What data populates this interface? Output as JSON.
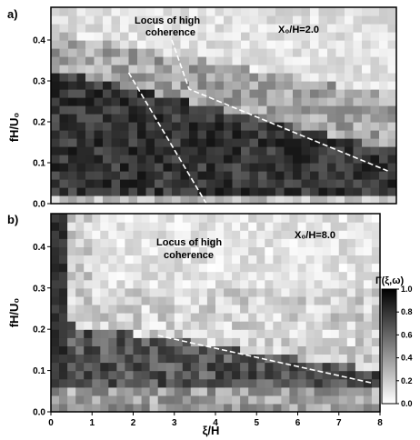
{
  "chart_data": [
    {
      "type": "heatmap",
      "panel_label": "a)",
      "condition": "X₀/H=2.0",
      "annotation": "Locus of high coherence",
      "annotation_lines": [
        "Locus of high",
        "coherence"
      ],
      "xlabel": "",
      "ylabel": "fH/U₀",
      "xlim": [
        0,
        8
      ],
      "ylim": [
        0,
        0.48
      ],
      "x_ticks": [],
      "y_ticks": [
        "0.0",
        "0.1",
        "0.2",
        "0.3",
        "0.4"
      ],
      "y_tick_values": [
        0.0,
        0.1,
        0.2,
        0.3,
        0.4
      ],
      "loci": [
        {
          "points": [
            [
              1.8,
              0.32
            ],
            [
              3.6,
              0.0
            ]
          ]
        },
        {
          "points": [
            [
              2.8,
              0.4
            ],
            [
              3.2,
              0.28
            ],
            [
              7.8,
              0.08
            ]
          ]
        }
      ]
    },
    {
      "type": "heatmap",
      "panel_label": "b)",
      "condition": "X₀/H=8.0",
      "annotation": "Locus of high coherence",
      "annotation_lines": [
        "Locus of high",
        "coherence"
      ],
      "xlabel": "ξ/H",
      "ylabel": "fH/U₀",
      "xlim": [
        0,
        8
      ],
      "ylim": [
        0,
        0.48
      ],
      "x_ticks": [
        "0",
        "1",
        "2",
        "3",
        "4",
        "5",
        "6",
        "7",
        "8"
      ],
      "x_tick_values": [
        0,
        1,
        2,
        3,
        4,
        5,
        6,
        7,
        8
      ],
      "y_ticks": [
        "0.0",
        "0.1",
        "0.2",
        "0.3",
        "0.4"
      ],
      "y_tick_values": [
        0.0,
        0.1,
        0.2,
        0.3,
        0.4
      ],
      "loci": [
        {
          "points": [
            [
              2.6,
              0.185
            ],
            [
              7.8,
              0.07
            ]
          ]
        }
      ],
      "colorbar": {
        "label": "Γ(ξ,ω)",
        "ticks": [
          "1.0",
          "0.8",
          "0.6",
          "0.4",
          "0.2",
          "0.0"
        ],
        "tick_values": [
          1.0,
          0.8,
          0.6,
          0.4,
          0.2,
          0.0
        ]
      }
    }
  ]
}
